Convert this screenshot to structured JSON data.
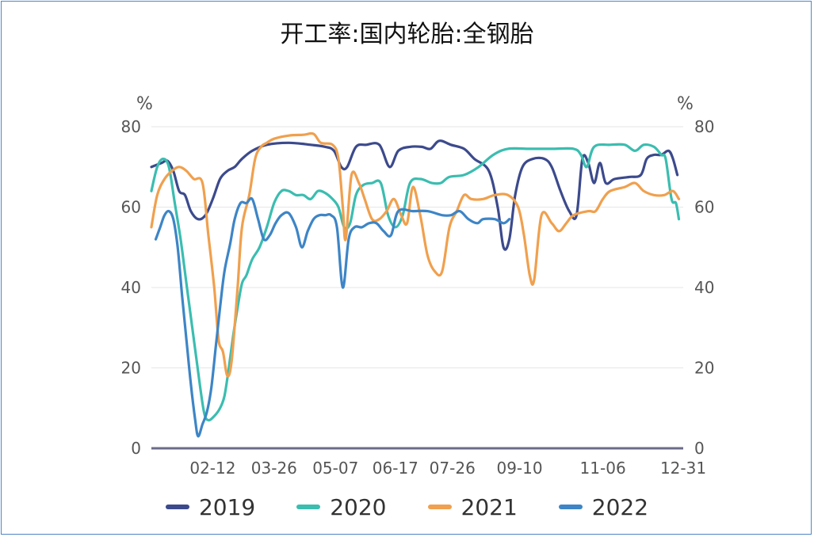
{
  "chart_data": {
    "type": "line",
    "title": "开工率:国内轮胎:全钢胎",
    "ylabel_left": "%",
    "ylabel_right": "%",
    "ylim": [
      0,
      80
    ],
    "yticks": [
      0,
      20,
      40,
      60,
      80
    ],
    "x_ticks": [
      "02-12",
      "03-26",
      "05-07",
      "06-17",
      "07-26",
      "09-10",
      "11-06",
      "12-31"
    ],
    "x_tick_days": [
      43,
      85,
      127,
      168,
      207,
      253,
      310,
      365
    ],
    "x_domain_days": [
      1,
      365
    ],
    "grid": "horizontal",
    "legend_position": "bottom",
    "series": [
      {
        "name": "2019",
        "color": "#3c4a8c",
        "points": [
          [
            1,
            70
          ],
          [
            8,
            71
          ],
          [
            12,
            71.5
          ],
          [
            16,
            69
          ],
          [
            20,
            64
          ],
          [
            24,
            63
          ],
          [
            28,
            59
          ],
          [
            33,
            57
          ],
          [
            38,
            58
          ],
          [
            43,
            62
          ],
          [
            48,
            67
          ],
          [
            53,
            69
          ],
          [
            58,
            70
          ],
          [
            63,
            72
          ],
          [
            70,
            74
          ],
          [
            80,
            75.5
          ],
          [
            95,
            76
          ],
          [
            110,
            75.5
          ],
          [
            120,
            75
          ],
          [
            126,
            74
          ],
          [
            131,
            70
          ],
          [
            135,
            70
          ],
          [
            141,
            75
          ],
          [
            148,
            75.5
          ],
          [
            157,
            75.5
          ],
          [
            164,
            70
          ],
          [
            170,
            74
          ],
          [
            178,
            75
          ],
          [
            186,
            75
          ],
          [
            192,
            74.5
          ],
          [
            198,
            76.5
          ],
          [
            206,
            75.5
          ],
          [
            215,
            74.5
          ],
          [
            222,
            72
          ],
          [
            232,
            69
          ],
          [
            238,
            60
          ],
          [
            242,
            50
          ],
          [
            246,
            52
          ],
          [
            250,
            63
          ],
          [
            255,
            70
          ],
          [
            262,
            72
          ],
          [
            270,
            72
          ],
          [
            275,
            70
          ],
          [
            281,
            64
          ],
          [
            287,
            59
          ],
          [
            292,
            58
          ],
          [
            296,
            72
          ],
          [
            300,
            71
          ],
          [
            304,
            66
          ],
          [
            308,
            71
          ],
          [
            312,
            66
          ],
          [
            318,
            67
          ],
          [
            328,
            67.5
          ],
          [
            336,
            68
          ],
          [
            340,
            72
          ],
          [
            345,
            73
          ],
          [
            350,
            73
          ],
          [
            355,
            74
          ],
          [
            358,
            72
          ],
          [
            361,
            68
          ]
        ]
      },
      {
        "name": "2020",
        "color": "#3bbdb0",
        "points": [
          [
            1,
            64
          ],
          [
            5,
            70
          ],
          [
            9,
            72
          ],
          [
            13,
            70
          ],
          [
            17,
            61
          ],
          [
            21,
            52
          ],
          [
            25,
            41
          ],
          [
            29,
            30
          ],
          [
            33,
            19
          ],
          [
            37,
            9
          ],
          [
            40,
            7
          ],
          [
            44,
            8
          ],
          [
            48,
            10
          ],
          [
            51,
            13
          ],
          [
            54,
            20
          ],
          [
            57,
            28
          ],
          [
            60,
            35
          ],
          [
            63,
            41
          ],
          [
            66,
            43
          ],
          [
            70,
            47
          ],
          [
            75,
            50
          ],
          [
            80,
            55
          ],
          [
            85,
            61
          ],
          [
            90,
            64
          ],
          [
            95,
            64
          ],
          [
            100,
            63
          ],
          [
            105,
            63
          ],
          [
            110,
            62
          ],
          [
            115,
            64
          ],
          [
            120,
            63.5
          ],
          [
            125,
            62
          ],
          [
            129,
            60
          ],
          [
            133,
            55
          ],
          [
            137,
            56
          ],
          [
            141,
            63
          ],
          [
            146,
            65.5
          ],
          [
            152,
            66
          ],
          [
            158,
            66
          ],
          [
            163,
            58
          ],
          [
            168,
            55
          ],
          [
            173,
            58
          ],
          [
            178,
            66
          ],
          [
            185,
            67
          ],
          [
            193,
            66
          ],
          [
            199,
            66
          ],
          [
            205,
            67.5
          ],
          [
            215,
            68
          ],
          [
            225,
            70
          ],
          [
            235,
            73
          ],
          [
            245,
            74.5
          ],
          [
            260,
            74.5
          ],
          [
            275,
            74.5
          ],
          [
            290,
            74.5
          ],
          [
            295,
            73
          ],
          [
            299,
            70
          ],
          [
            304,
            75
          ],
          [
            315,
            75.5
          ],
          [
            325,
            75.5
          ],
          [
            332,
            74
          ],
          [
            338,
            75.5
          ],
          [
            345,
            75
          ],
          [
            350,
            73
          ],
          [
            353,
            72
          ],
          [
            357,
            62
          ],
          [
            360,
            61
          ],
          [
            362,
            57
          ]
        ]
      },
      {
        "name": "2021",
        "color": "#f0a04e",
        "points": [
          [
            1,
            55
          ],
          [
            5,
            63
          ],
          [
            10,
            67
          ],
          [
            15,
            69
          ],
          [
            20,
            70
          ],
          [
            25,
            69
          ],
          [
            30,
            67
          ],
          [
            36,
            66
          ],
          [
            40,
            53
          ],
          [
            44,
            40
          ],
          [
            47,
            27
          ],
          [
            50,
            24
          ],
          [
            53,
            18
          ],
          [
            56,
            22
          ],
          [
            60,
            40
          ],
          [
            63,
            55
          ],
          [
            68,
            63
          ],
          [
            72,
            72
          ],
          [
            76,
            75
          ],
          [
            80,
            76
          ],
          [
            85,
            77
          ],
          [
            95,
            77.8
          ],
          [
            105,
            78
          ],
          [
            112,
            78.2
          ],
          [
            117,
            76
          ],
          [
            125,
            75.5
          ],
          [
            129,
            72
          ],
          [
            132,
            60
          ],
          [
            134,
            52
          ],
          [
            138,
            68
          ],
          [
            143,
            66
          ],
          [
            147,
            62
          ],
          [
            152,
            57
          ],
          [
            157,
            57
          ],
          [
            162,
            59
          ],
          [
            167,
            62
          ],
          [
            172,
            58
          ],
          [
            176,
            56
          ],
          [
            180,
            65
          ],
          [
            185,
            58
          ],
          [
            190,
            48
          ],
          [
            195,
            44
          ],
          [
            200,
            44
          ],
          [
            205,
            55
          ],
          [
            210,
            59
          ],
          [
            215,
            63
          ],
          [
            220,
            62
          ],
          [
            228,
            62
          ],
          [
            236,
            63
          ],
          [
            245,
            63
          ],
          [
            252,
            60
          ],
          [
            256,
            53
          ],
          [
            260,
            43
          ],
          [
            263,
            42
          ],
          [
            268,
            58
          ],
          [
            275,
            56
          ],
          [
            280,
            54
          ],
          [
            285,
            56
          ],
          [
            290,
            58
          ],
          [
            300,
            59
          ],
          [
            305,
            59
          ],
          [
            310,
            62
          ],
          [
            315,
            64
          ],
          [
            325,
            65
          ],
          [
            332,
            66
          ],
          [
            338,
            64
          ],
          [
            345,
            63
          ],
          [
            352,
            63
          ],
          [
            358,
            64
          ],
          [
            362,
            62
          ]
        ]
      },
      {
        "name": "2022",
        "color": "#3d85c6",
        "points": [
          [
            4,
            52
          ],
          [
            7,
            55
          ],
          [
            10,
            58
          ],
          [
            13,
            59
          ],
          [
            16,
            57
          ],
          [
            19,
            50
          ],
          [
            22,
            38
          ],
          [
            25,
            27
          ],
          [
            28,
            16
          ],
          [
            31,
            7
          ],
          [
            33,
            3
          ],
          [
            36,
            6
          ],
          [
            39,
            9
          ],
          [
            42,
            15
          ],
          [
            45,
            25
          ],
          [
            48,
            35
          ],
          [
            51,
            44
          ],
          [
            55,
            51
          ],
          [
            58,
            57
          ],
          [
            62,
            61
          ],
          [
            66,
            61
          ],
          [
            70,
            62
          ],
          [
            74,
            57
          ],
          [
            78,
            52
          ],
          [
            82,
            53
          ],
          [
            86,
            56
          ],
          [
            90,
            58
          ],
          [
            95,
            58.5
          ],
          [
            100,
            55
          ],
          [
            104,
            50
          ],
          [
            108,
            54
          ],
          [
            112,
            57
          ],
          [
            116,
            58
          ],
          [
            120,
            58
          ],
          [
            124,
            58
          ],
          [
            128,
            55
          ],
          [
            132,
            40
          ],
          [
            136,
            52
          ],
          [
            140,
            55
          ],
          [
            145,
            55
          ],
          [
            150,
            56
          ],
          [
            155,
            56
          ],
          [
            160,
            54
          ],
          [
            165,
            53
          ],
          [
            170,
            59
          ],
          [
            180,
            59
          ],
          [
            190,
            59
          ],
          [
            200,
            58
          ],
          [
            206,
            58
          ],
          [
            212,
            59
          ],
          [
            218,
            57
          ],
          [
            224,
            56
          ],
          [
            228,
            57
          ],
          [
            236,
            57
          ],
          [
            242,
            56
          ],
          [
            246,
            57
          ]
        ]
      }
    ]
  }
}
